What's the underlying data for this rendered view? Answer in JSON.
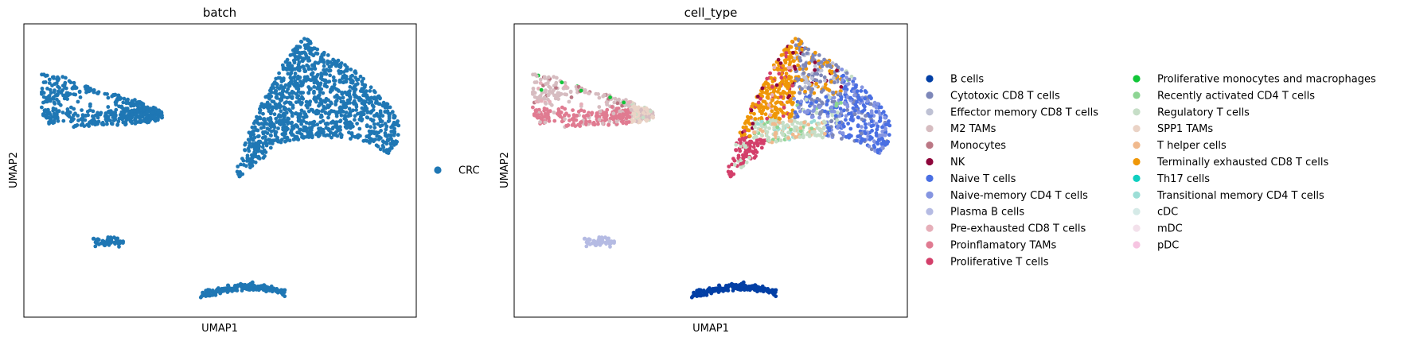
{
  "chart_data": [
    {
      "type": "scatter",
      "title": "batch",
      "xlabel": "UMAP1",
      "ylabel": "UMAP2",
      "ticks": "none",
      "grid": false,
      "legend_position": "right",
      "color_by": "batch",
      "categories": [
        {
          "name": "CRC",
          "color": "#1f77b4"
        }
      ]
    },
    {
      "type": "scatter",
      "title": "cell_type",
      "xlabel": "UMAP1",
      "ylabel": "UMAP2",
      "ticks": "none",
      "grid": false,
      "legend_position": "right",
      "legend_columns": 2,
      "color_by": "cell_type",
      "categories": [
        {
          "name": "B cells",
          "color": "#023fa5"
        },
        {
          "name": "Cytotoxic CD8 T cells",
          "color": "#7d87b9"
        },
        {
          "name": "Effector memory CD8 T cells",
          "color": "#bec1d4"
        },
        {
          "name": "M2 TAMs",
          "color": "#d6bcc0"
        },
        {
          "name": "Monocytes",
          "color": "#bb7784"
        },
        {
          "name": "NK",
          "color": "#8e063b"
        },
        {
          "name": "Naive T cells",
          "color": "#4a6fe3"
        },
        {
          "name": "Naive-memory CD4 T cells",
          "color": "#8595e1"
        },
        {
          "name": "Plasma B cells",
          "color": "#b5bbe3"
        },
        {
          "name": "Pre-exhausted CD8 T cells",
          "color": "#e6afb9"
        },
        {
          "name": "Proinflamatory TAMs",
          "color": "#e07b91"
        },
        {
          "name": "Proliferative T cells",
          "color": "#d33f6a"
        },
        {
          "name": "Proliferative monocytes and macrophages",
          "color": "#11c638"
        },
        {
          "name": "Recently activated CD4 T cells",
          "color": "#8dd593"
        },
        {
          "name": "Regulatory T cells",
          "color": "#c6dec7"
        },
        {
          "name": "SPP1 TAMs",
          "color": "#ead3c6"
        },
        {
          "name": "T helper cells",
          "color": "#f0b98d"
        },
        {
          "name": "Terminally exhausted CD8 T cells",
          "color": "#ef9708"
        },
        {
          "name": "Th17 cells",
          "color": "#0fcfc0"
        },
        {
          "name": "Transitional memory CD4 T cells",
          "color": "#9cded6"
        },
        {
          "name": "cDC",
          "color": "#d5eae7"
        },
        {
          "name": "mDC",
          "color": "#f3e1eb"
        },
        {
          "name": "pDC",
          "color": "#f6c4e1"
        }
      ]
    }
  ]
}
